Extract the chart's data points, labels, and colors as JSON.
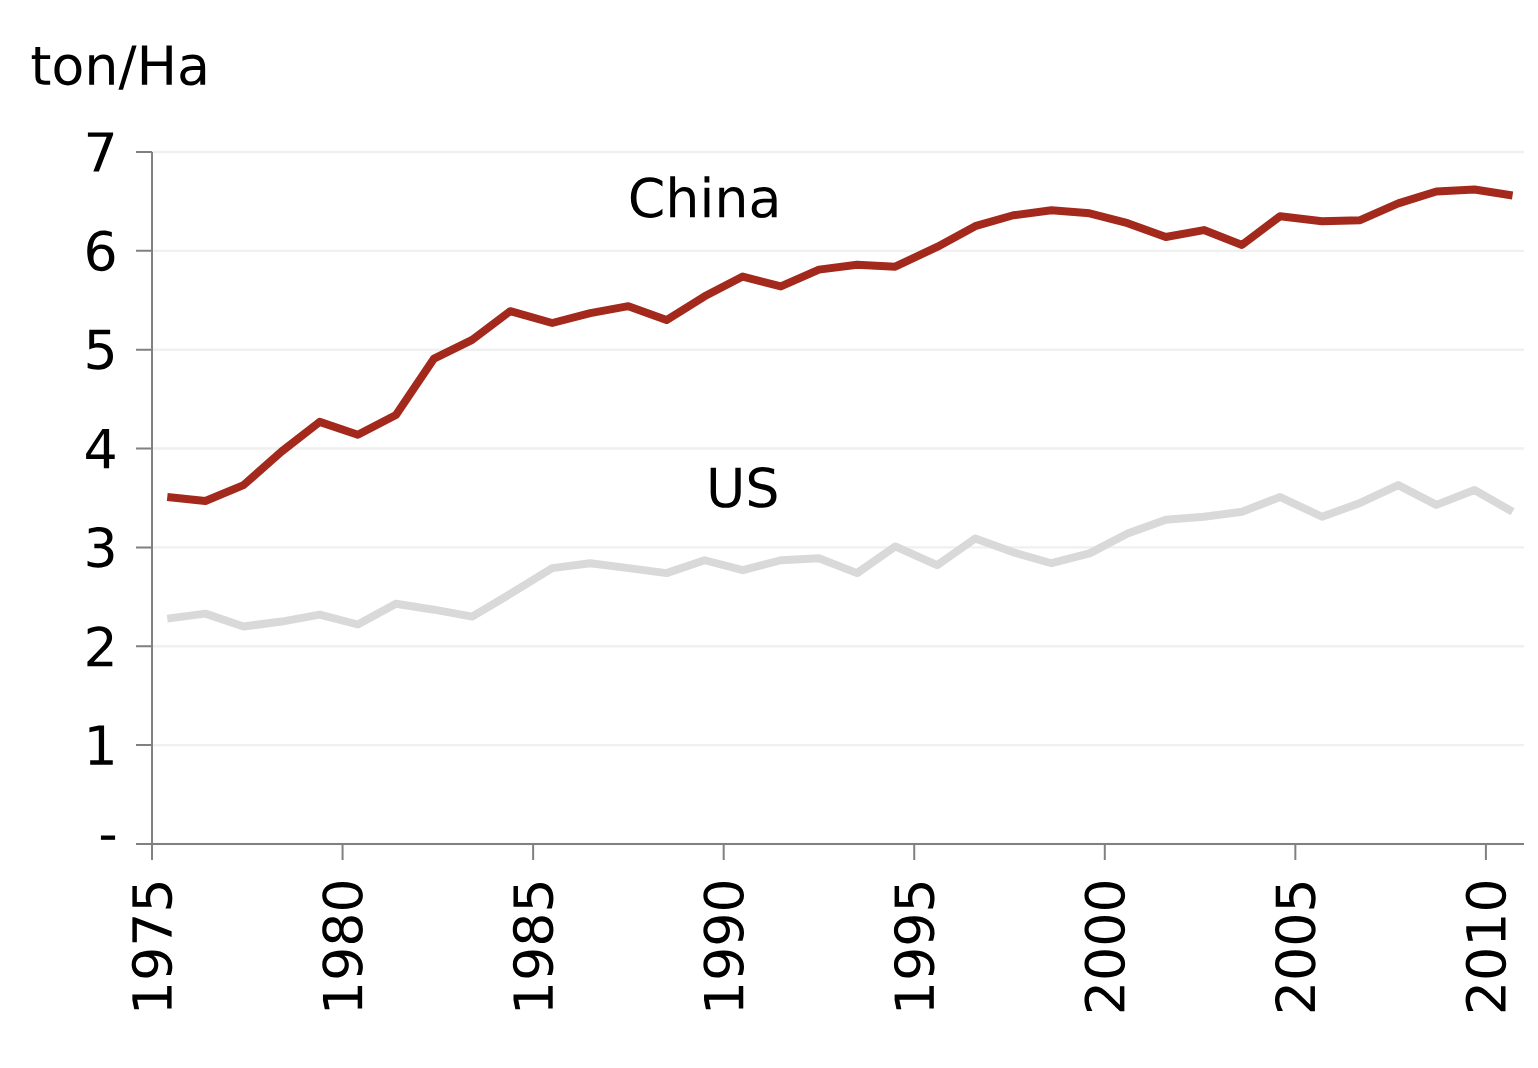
{
  "chart_data": {
    "type": "line",
    "ylabel": "ton/Ha",
    "xlim": [
      1975,
      2011
    ],
    "xticks": [
      1975,
      1980,
      1985,
      1990,
      1995,
      2000,
      2005,
      2010
    ],
    "ylim": [
      0,
      7
    ],
    "yticks": [
      {
        "value": 0,
        "label": "-"
      },
      1,
      2,
      3,
      4,
      5,
      6,
      7
    ],
    "x": [
      1975.4,
      1976.4,
      1977.4,
      1978.4,
      1979.4,
      1980.4,
      1981.4,
      1982.4,
      1983.4,
      1984.4,
      1985.5,
      1986.5,
      1987.5,
      1988.5,
      1989.5,
      1990.5,
      1991.5,
      1992.5,
      1993.5,
      1994.5,
      1995.6,
      1996.6,
      1997.6,
      1998.6,
      1999.6,
      2000.6,
      2001.6,
      2002.6,
      2003.6,
      2004.6,
      2005.7,
      2006.7,
      2007.7,
      2008.7,
      2009.7,
      2010.7
    ],
    "grid": "y",
    "legend": false,
    "marker": "none",
    "line_style": "solid",
    "series": [
      {
        "name": "China",
        "color": "#a3291c",
        "values": [
          3.51,
          3.47,
          3.63,
          3.97,
          4.27,
          4.14,
          4.34,
          4.91,
          5.1,
          5.39,
          5.27,
          5.37,
          5.44,
          5.3,
          5.54,
          5.74,
          5.64,
          5.81,
          5.86,
          5.84,
          6.04,
          6.25,
          6.36,
          6.41,
          6.38,
          6.28,
          6.14,
          6.21,
          6.06,
          6.35,
          6.3,
          6.31,
          6.48,
          6.6,
          6.62,
          6.56
        ]
      },
      {
        "name": "US",
        "color": "#d9d9d9",
        "values": [
          2.28,
          2.33,
          2.2,
          2.25,
          2.32,
          2.22,
          2.43,
          2.37,
          2.3,
          2.53,
          2.79,
          2.84,
          2.79,
          2.74,
          2.87,
          2.77,
          2.87,
          2.89,
          2.74,
          3.01,
          2.82,
          3.09,
          2.95,
          2.84,
          2.94,
          3.14,
          3.28,
          3.31,
          3.36,
          3.51,
          3.31,
          3.45,
          3.63,
          3.43,
          3.58,
          3.36
        ]
      }
    ]
  }
}
